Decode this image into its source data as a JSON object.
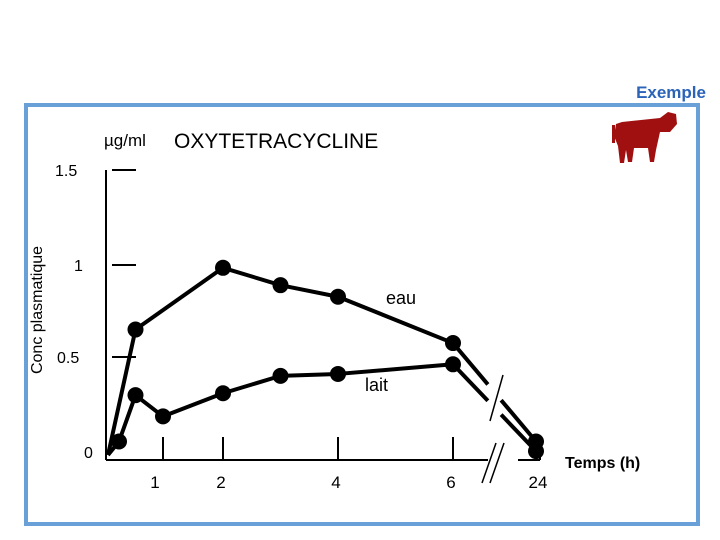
{
  "header": {
    "example_label": "Exemple"
  },
  "colors": {
    "frame": "#6aa0d8",
    "example_text": "#2a63b8",
    "cow_icon": "#a01010"
  },
  "icons": {
    "animal": "cow-icon"
  },
  "chart_data": {
    "type": "line",
    "title": "OXYTETRACYCLINE",
    "unit_label": "µg/ml",
    "ylabel": "Conc plasmatique",
    "xlabel": "Temps (h)",
    "x_tick_labels": [
      "1",
      "2",
      "4",
      "6",
      "24"
    ],
    "y_tick_labels": [
      "0",
      "0.5",
      "1",
      "1.5"
    ],
    "ylim": [
      0,
      1.5
    ],
    "x_axis_break": "between 6 and 24",
    "grid": false,
    "legend": "inline labels",
    "series": [
      {
        "name": "eau",
        "x": [
          0,
          0.5,
          2,
          3,
          4,
          6,
          24
        ],
        "y": [
          0,
          0.65,
          0.97,
          0.88,
          0.82,
          0.58,
          0.07
        ]
      },
      {
        "name": "lait",
        "x": [
          0,
          0.2,
          0.5,
          1,
          2,
          3,
          4,
          6,
          24
        ],
        "y": [
          0,
          0.07,
          0.31,
          0.2,
          0.32,
          0.41,
          0.42,
          0.47,
          0.02
        ]
      }
    ]
  }
}
